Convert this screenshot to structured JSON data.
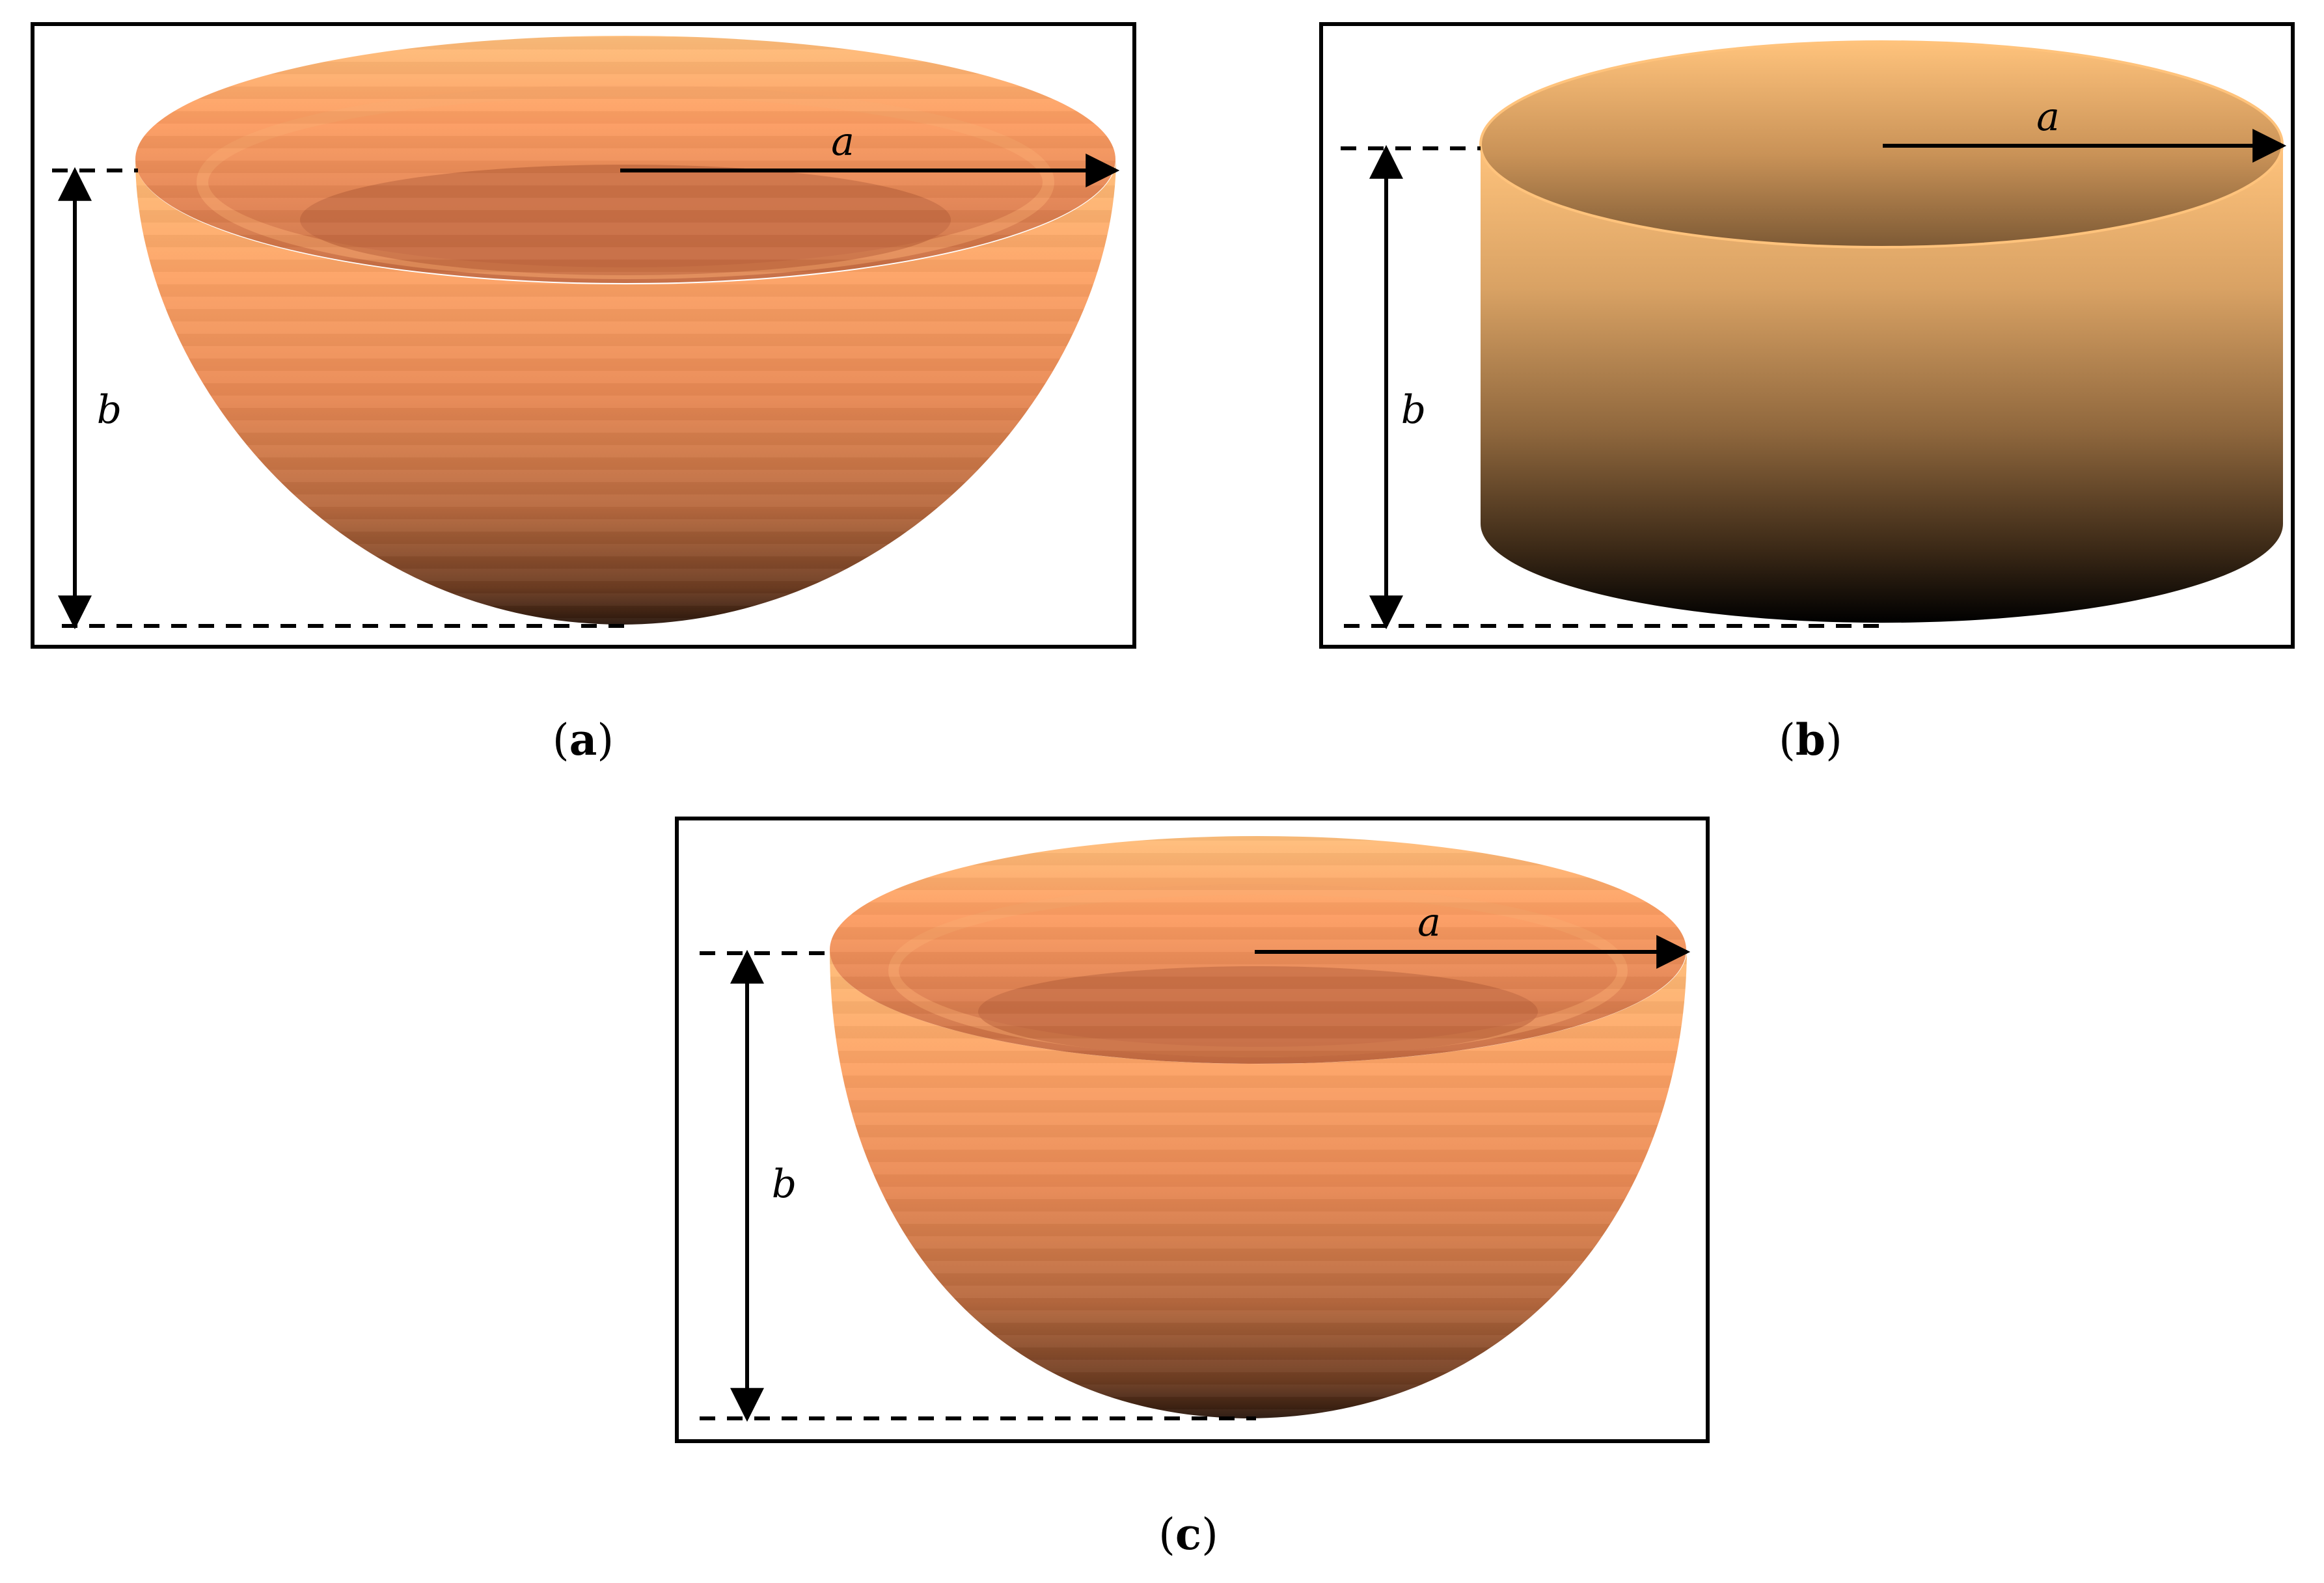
{
  "panels": [
    {
      "id": "a",
      "shape": "hemispherical bowl",
      "radius_label": "a",
      "height_label": "b",
      "caption_open": "(",
      "caption_letter": "a",
      "caption_close": ")"
    },
    {
      "id": "b",
      "shape": "cylinder",
      "radius_label": "a",
      "height_label": "b",
      "caption_open": "(",
      "caption_letter": "b",
      "caption_close": ")"
    },
    {
      "id": "c",
      "shape": "deep hemispherical bowl",
      "radius_label": "a",
      "height_label": "b",
      "caption_open": "(",
      "caption_letter": "c",
      "caption_close": ")"
    }
  ],
  "colors": {
    "bowl_rim": "#ffbd78",
    "bowl_mid": "#fd9b62",
    "bowl_dark": "#2a170d",
    "bowl_inner": "#c76d42",
    "cylinder_top": "#ffc37c",
    "cylinder_bottom": "#000000",
    "frame": "#000000"
  }
}
